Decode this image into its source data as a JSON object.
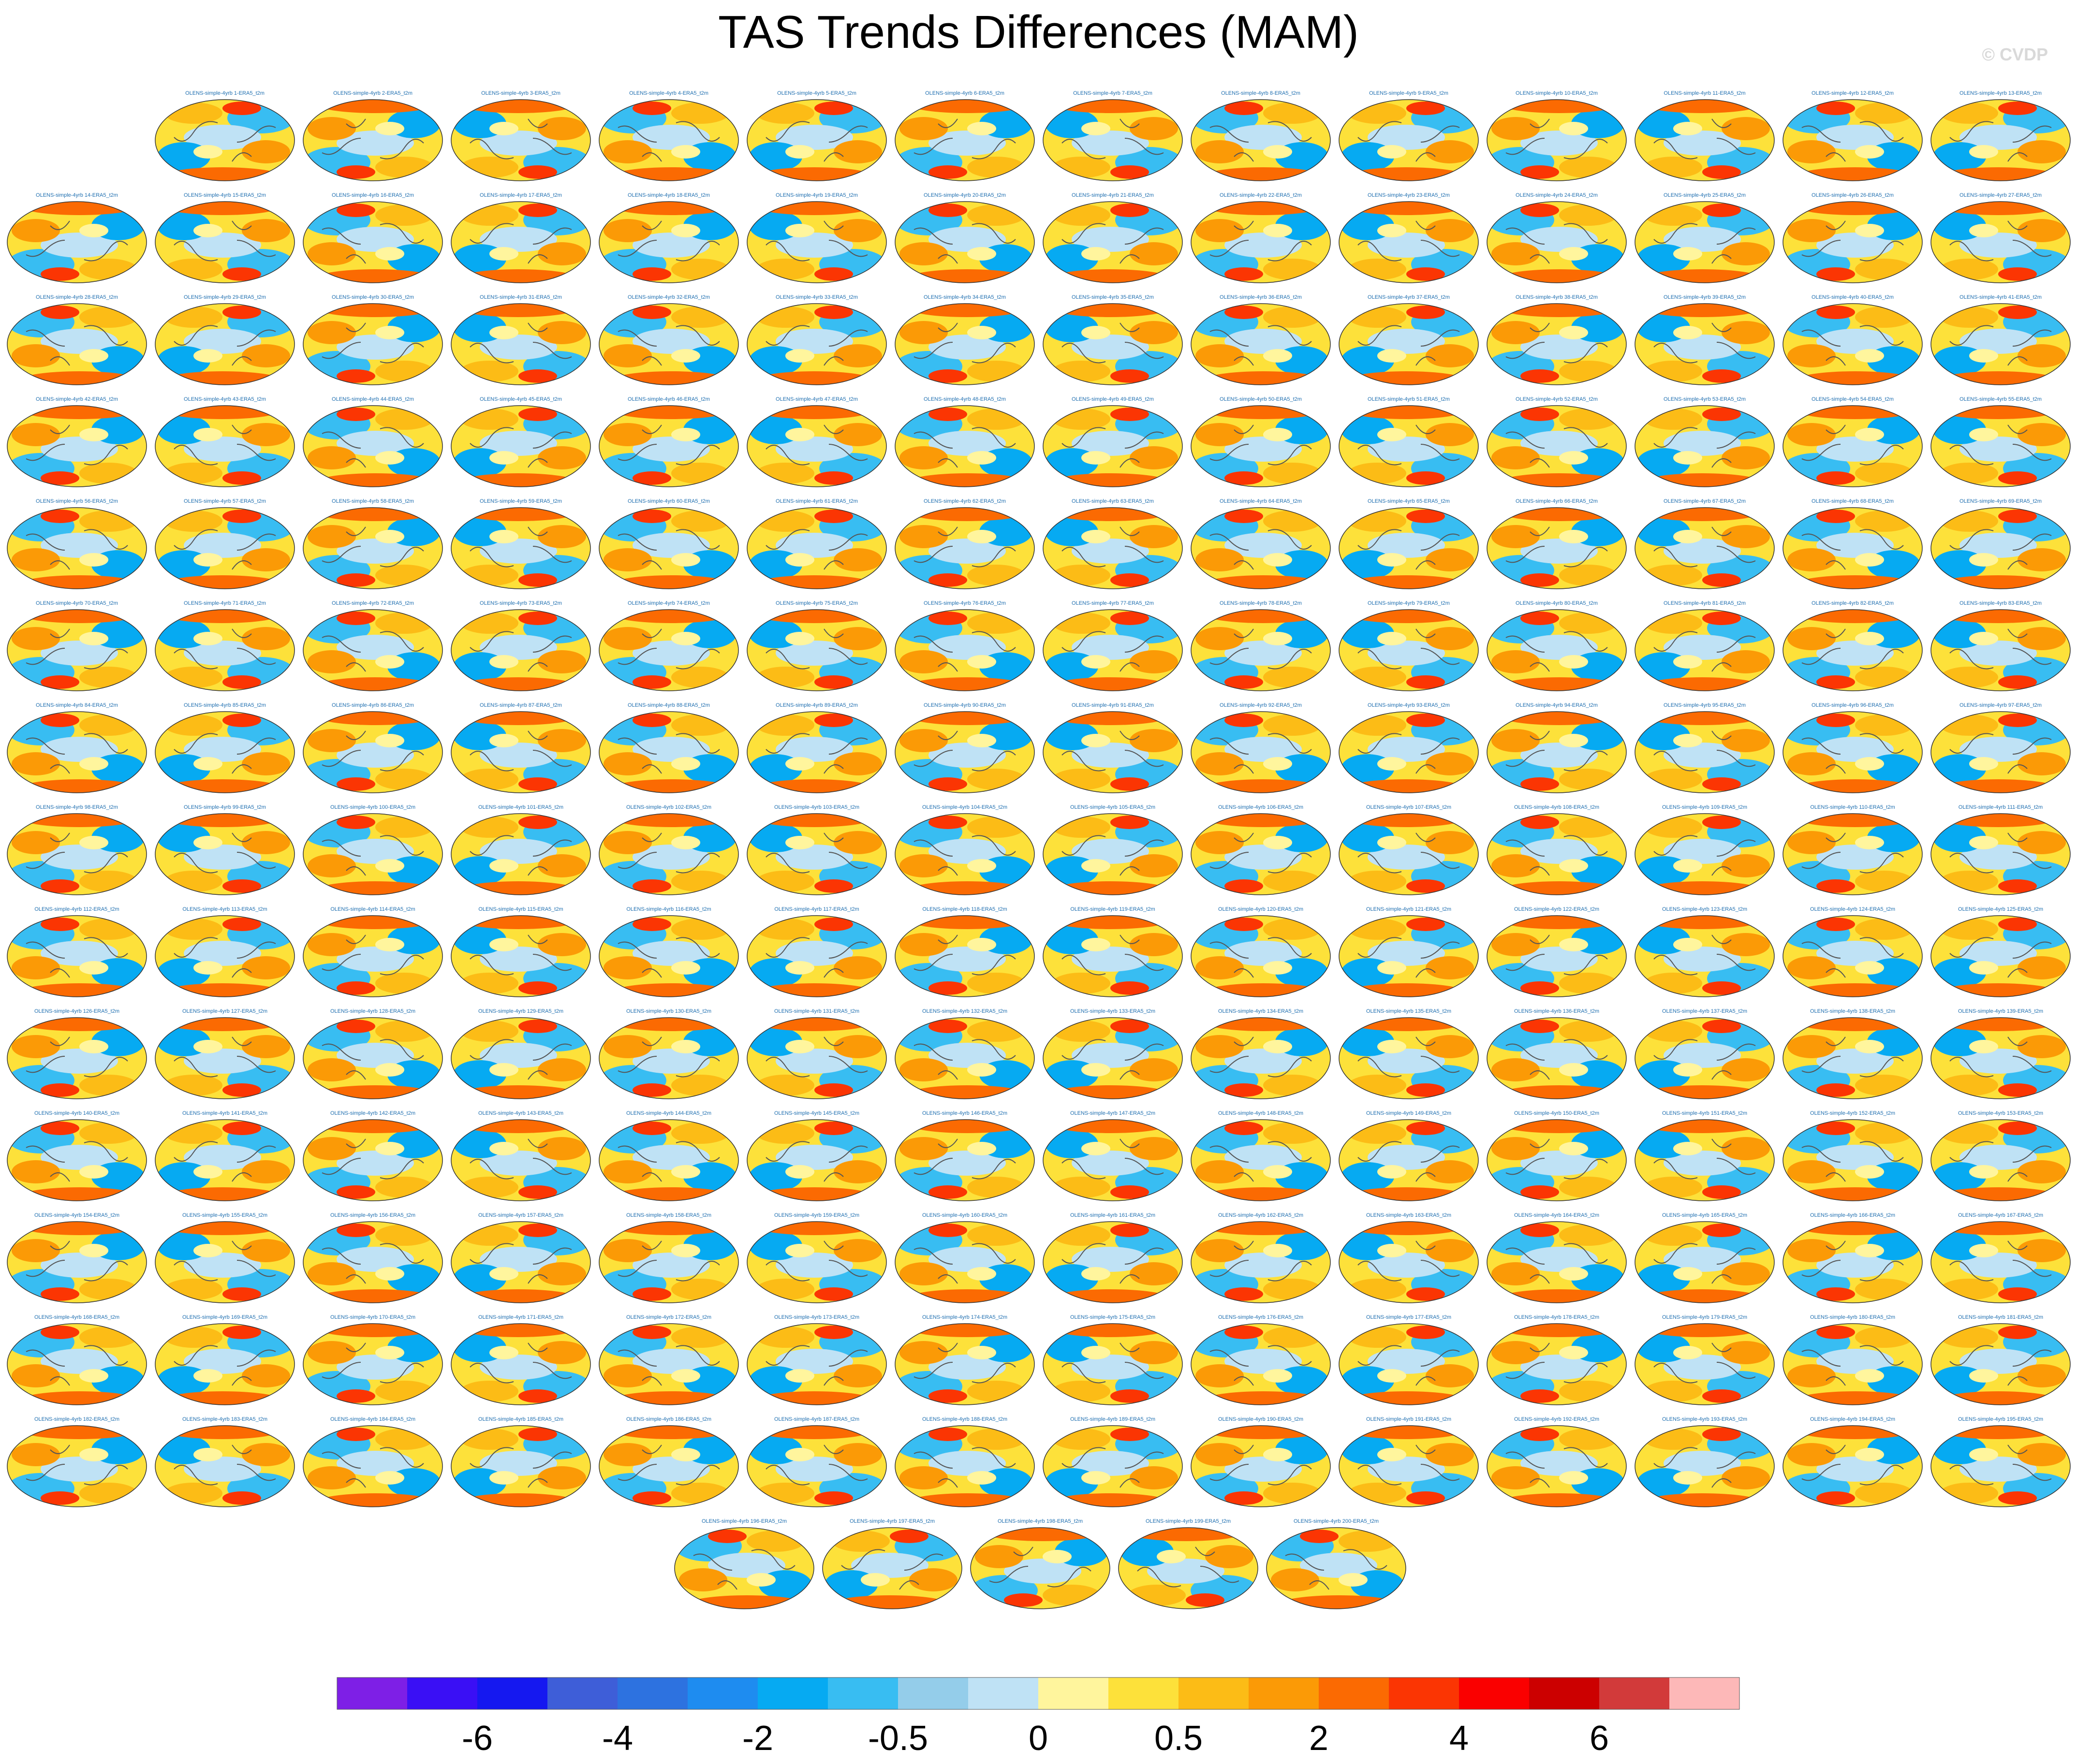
{
  "title": "TAS Trends Differences (MAM)",
  "watermark": "© CVDP",
  "chart_data": {
    "type": "heatmap",
    "title": "TAS Trends Differences (MAM)",
    "panel_count": 200,
    "panel_title_prefix": "OLENS-simple-4yrb ",
    "panel_title_suffix": "-ERA5_t2m",
    "colorbar": {
      "colors": [
        "#7e1fe6",
        "#3a0ff5",
        "#1518f0",
        "#3e5ed8",
        "#2d72e0",
        "#1e8cf0",
        "#06aaf2",
        "#38bdf2",
        "#94cdea",
        "#bfe2f5",
        "#fff59d",
        "#fde13a",
        "#fcbc16",
        "#fb9a06",
        "#fb6a02",
        "#fb3503",
        "#fa0000",
        "#cc0000",
        "#d23a3a",
        "#fdb8b8"
      ],
      "tick_labels": [
        "-6",
        "-4",
        "-2",
        "-0.5",
        "0",
        "0.5",
        "2",
        "4",
        "6"
      ]
    }
  }
}
